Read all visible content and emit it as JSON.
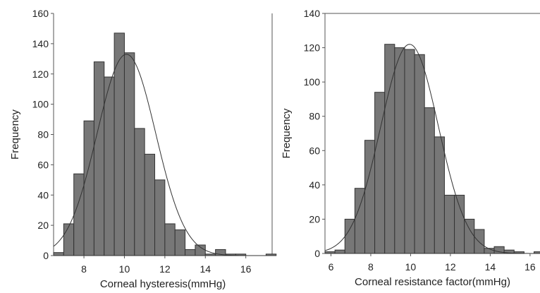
{
  "chart_data": [
    {
      "type": "bar",
      "subtype": "histogram-with-normal-curve",
      "title": "",
      "xlabel": "Corneal hysteresis(mmHg)",
      "ylabel": "Frequency",
      "xlim": [
        6.5,
        17.3
      ],
      "ylim": [
        0,
        160
      ],
      "xticks": [
        8,
        10,
        12,
        14,
        16
      ],
      "yticks": [
        0,
        20,
        40,
        60,
        80,
        100,
        120,
        140,
        160
      ],
      "bin_width": 0.5,
      "bin_starts": [
        6.5,
        7.0,
        7.5,
        8.0,
        8.5,
        9.0,
        9.5,
        10.0,
        10.5,
        11.0,
        11.5,
        12.0,
        12.5,
        13.0,
        13.5,
        14.0,
        14.5,
        15.0,
        15.5,
        16.0,
        16.5,
        17.0
      ],
      "values": [
        2,
        21,
        54,
        89,
        128,
        118,
        147,
        134,
        84,
        67,
        50,
        21,
        17,
        4,
        7,
        1,
        4,
        1,
        1,
        0,
        0,
        1
      ],
      "normal_curve": {
        "mean": 10.1,
        "sd": 1.45,
        "peak": 133
      },
      "bar_color": "#777777",
      "curve_color": "#333333",
      "grid": false,
      "frame": "left-and-right-lines"
    },
    {
      "type": "bar",
      "subtype": "histogram-with-normal-curve",
      "title": "",
      "xlabel": "Corneal resistance factor(mmHg)",
      "ylabel": "Frequency",
      "xlim": [
        5.7,
        16.5
      ],
      "ylim": [
        0,
        140
      ],
      "xticks": [
        6,
        8,
        10,
        12,
        14,
        16
      ],
      "yticks": [
        0,
        20,
        40,
        60,
        80,
        100,
        120,
        140
      ],
      "bin_width": 0.5,
      "bin_starts": [
        5.7,
        6.2,
        6.7,
        7.2,
        7.7,
        8.2,
        8.7,
        9.2,
        9.7,
        10.2,
        10.7,
        11.2,
        11.7,
        12.2,
        12.7,
        13.2,
        13.7,
        14.2,
        14.7,
        15.2,
        15.7,
        16.2
      ],
      "values": [
        1,
        2,
        20,
        38,
        66,
        94,
        122,
        120,
        119,
        116,
        85,
        68,
        34,
        34,
        20,
        14,
        3,
        4,
        2,
        1,
        0,
        1
      ],
      "normal_curve": {
        "mean": 9.95,
        "sd": 1.45,
        "peak": 122
      },
      "bar_color": "#777777",
      "curve_color": "#333333",
      "grid": false,
      "frame": "left-and-top-lines"
    }
  ]
}
